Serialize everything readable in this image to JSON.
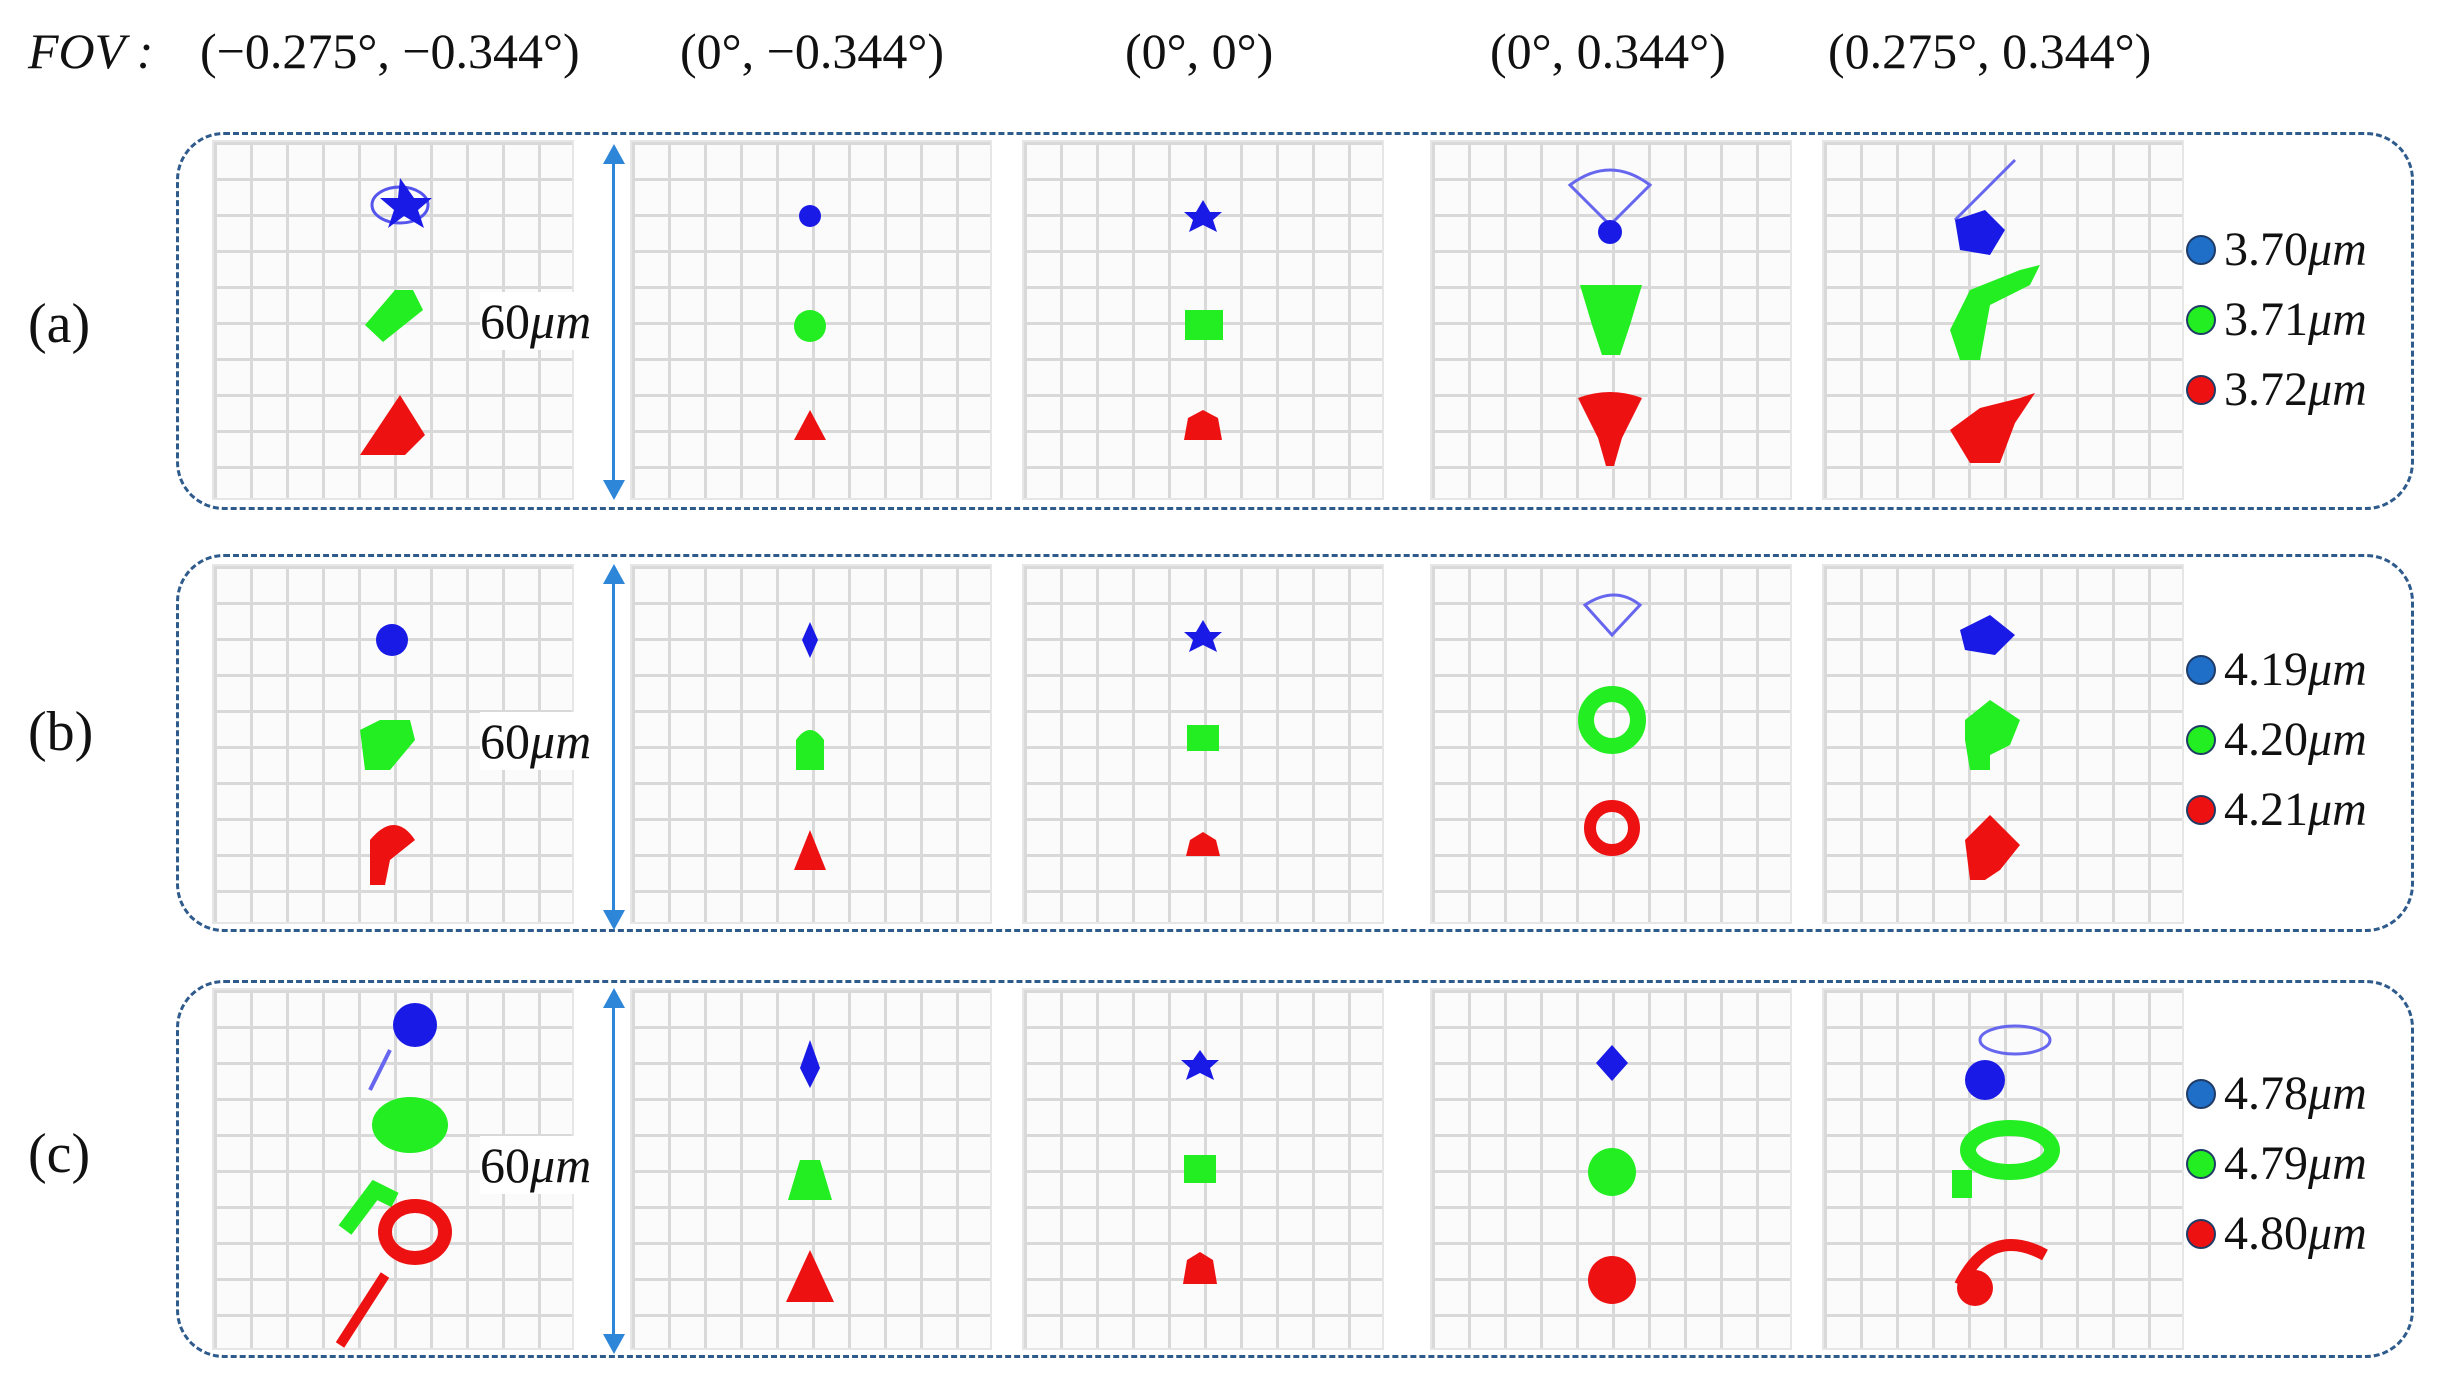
{
  "header": {
    "fov_label": "FOV :",
    "fields": [
      "(−0.275°, −0.344°)",
      "(0°, −0.344°)",
      "(0°, 0°)",
      "(0°, 0.344°)",
      "(0.275°, 0.344°)"
    ]
  },
  "scale": {
    "value": "60",
    "unit": "μm"
  },
  "colors": {
    "blue": "#1a1ae6",
    "green": "#22ee22",
    "red": "#ee1111",
    "border": "#2f5b8c",
    "scale": "#2e86d9"
  },
  "rows": [
    {
      "label": "(a)",
      "legend": [
        {
          "value": "3.70",
          "unit": "μm",
          "color": "#1f6fc9",
          "icon": "blue-dot-icon"
        },
        {
          "value": "3.71",
          "unit": "μm",
          "color": "#22ee22",
          "icon": "green-dot-icon"
        },
        {
          "value": "3.72",
          "unit": "μm",
          "color": "#ee1111",
          "icon": "red-dot-icon"
        }
      ]
    },
    {
      "label": "(b)",
      "legend": [
        {
          "value": "4.19",
          "unit": "μm",
          "color": "#1f6fc9",
          "icon": "blue-dot-icon"
        },
        {
          "value": "4.20",
          "unit": "μm",
          "color": "#22ee22",
          "icon": "green-dot-icon"
        },
        {
          "value": "4.21",
          "unit": "μm",
          "color": "#ee1111",
          "icon": "red-dot-icon"
        }
      ]
    },
    {
      "label": "(c)",
      "legend": [
        {
          "value": "4.78",
          "unit": "μm",
          "color": "#1f6fc9",
          "icon": "blue-dot-icon"
        },
        {
          "value": "4.79",
          "unit": "μm",
          "color": "#22ee22",
          "icon": "green-dot-icon"
        },
        {
          "value": "4.80",
          "unit": "μm",
          "color": "#ee1111",
          "icon": "red-dot-icon"
        }
      ]
    }
  ]
}
